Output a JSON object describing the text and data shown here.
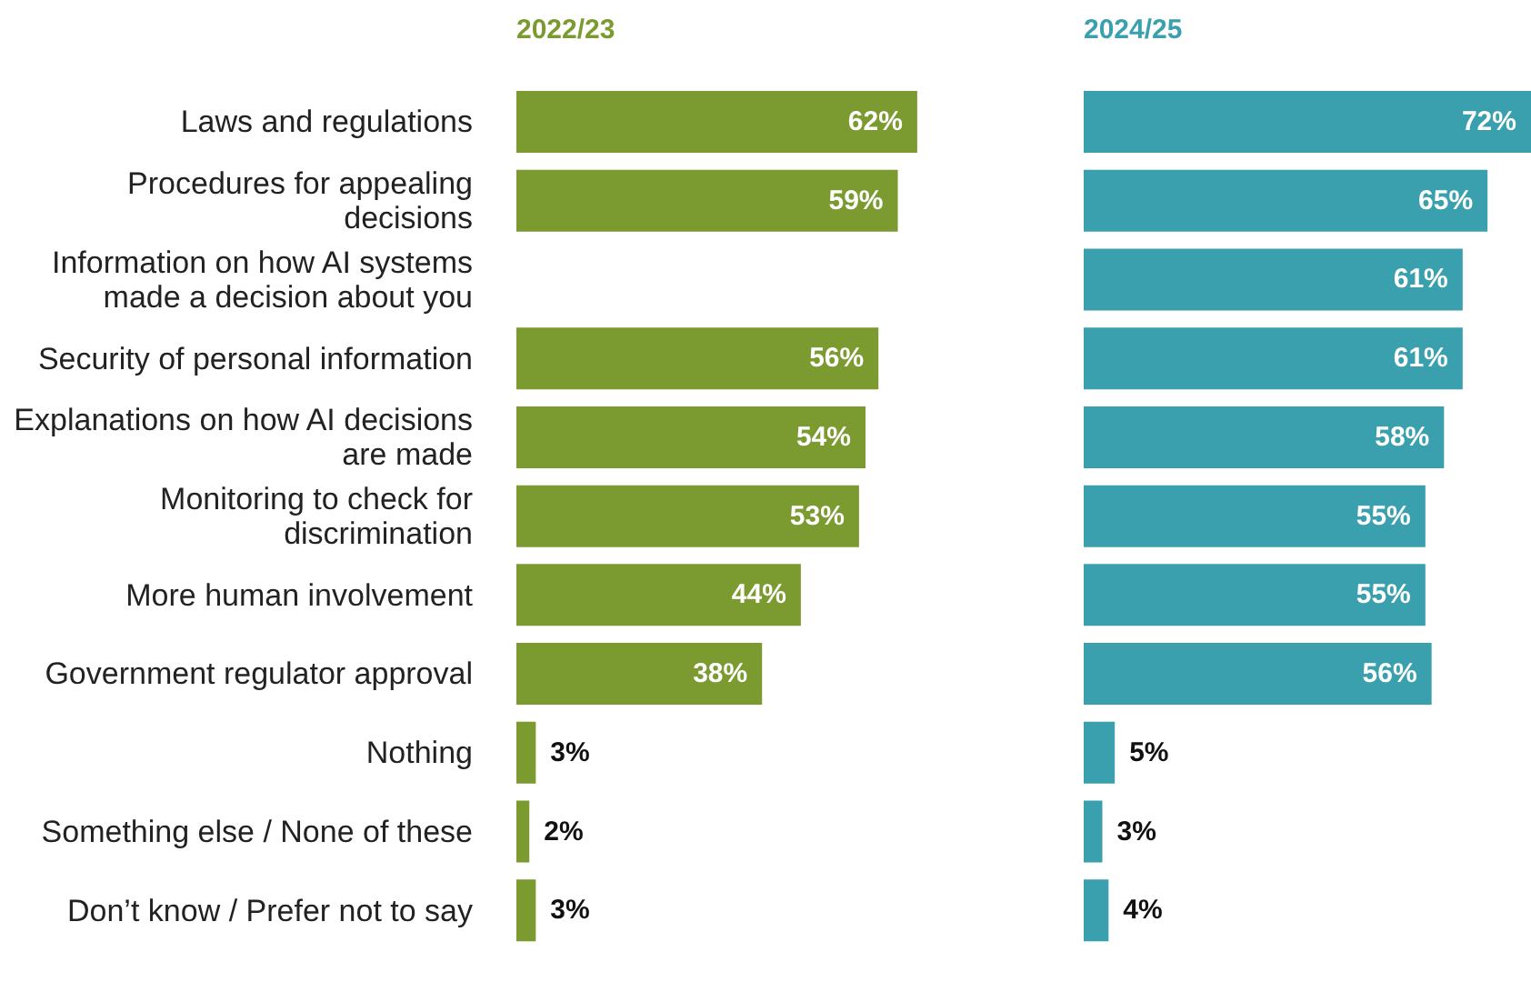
{
  "chart_data": [
    {
      "type": "bar",
      "orientation": "horizontal",
      "title": "2022/23",
      "tick_labels": "y",
      "categories": [
        "Laws and regulations",
        "Procedures for appealing decisions",
        "Information on how AI systems made a decision about you",
        "Security of personal information",
        "Explanations on how AI decisions are made",
        "Monitoring to check for discrimination",
        "More human involvement",
        "Government regulator approval",
        "Nothing",
        "Something else / None of these",
        "Don’t know / Prefer not to say"
      ],
      "series": [
        {
          "color": "#7b9a2f",
          "values": [
            62,
            59,
            null,
            56,
            54,
            53,
            44,
            38,
            3,
            2,
            3
          ],
          "value_labels": [
            "62%",
            "59%",
            null,
            "56%",
            "54%",
            "53%",
            "44%",
            "38%",
            "3%",
            "2%",
            "3%"
          ]
        }
      ]
    },
    {
      "type": "bar",
      "orientation": "horizontal",
      "title": "2024/25",
      "tick_labels": false,
      "categories": [
        null,
        null,
        null,
        null,
        null,
        null,
        null,
        null,
        null,
        null,
        null
      ],
      "series": [
        {
          "color": "#3aa0ae",
          "values": [
            72,
            65,
            61,
            61,
            58,
            55,
            55,
            56,
            5,
            3,
            4
          ],
          "value_labels": [
            "72%",
            "65%",
            "61%",
            "61%",
            "58%",
            "55%",
            "55%",
            "56%",
            "5%",
            "3%",
            "4%"
          ]
        }
      ]
    }
  ]
}
